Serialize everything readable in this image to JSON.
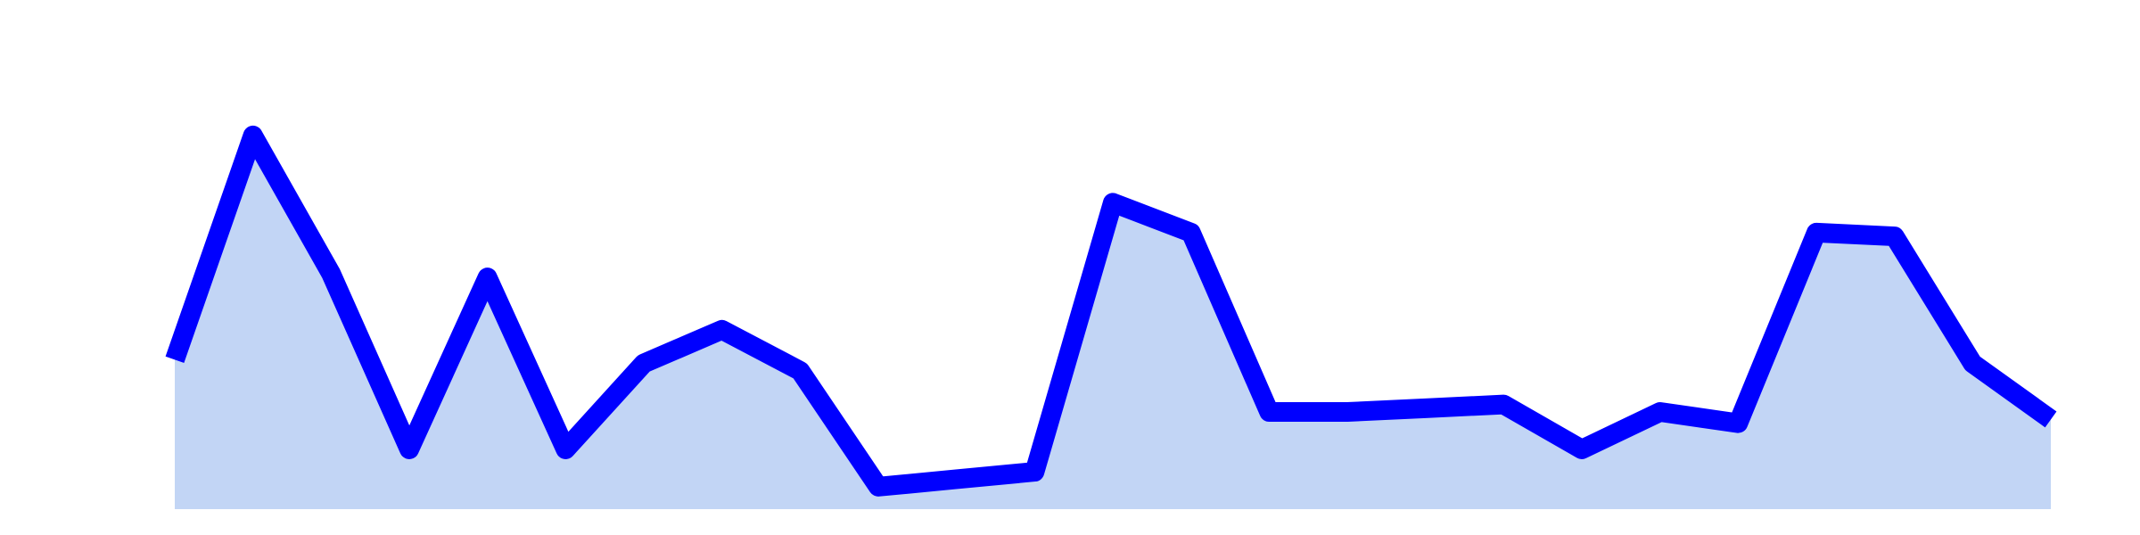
{
  "chart_data": {
    "type": "area",
    "title": "",
    "xlabel": "",
    "ylabel": "",
    "grid": false,
    "legend": "none",
    "x": [
      0,
      1,
      2,
      3,
      4,
      5,
      6,
      7,
      8,
      9,
      10,
      11,
      12,
      13,
      14,
      15,
      16,
      17,
      18,
      19,
      20,
      21,
      22,
      23,
      24
    ],
    "series": [
      {
        "values": [
          40,
          100,
          63,
          16,
          62,
          16,
          39,
          48,
          37,
          6,
          8,
          10,
          82,
          74,
          26,
          26,
          27,
          28,
          16,
          26,
          23,
          74,
          73,
          39,
          24
        ]
      }
    ],
    "ylim": [
      0,
      110
    ],
    "colors": {
      "line": "#0000ff",
      "fill": "#c2d5f5"
    }
  }
}
